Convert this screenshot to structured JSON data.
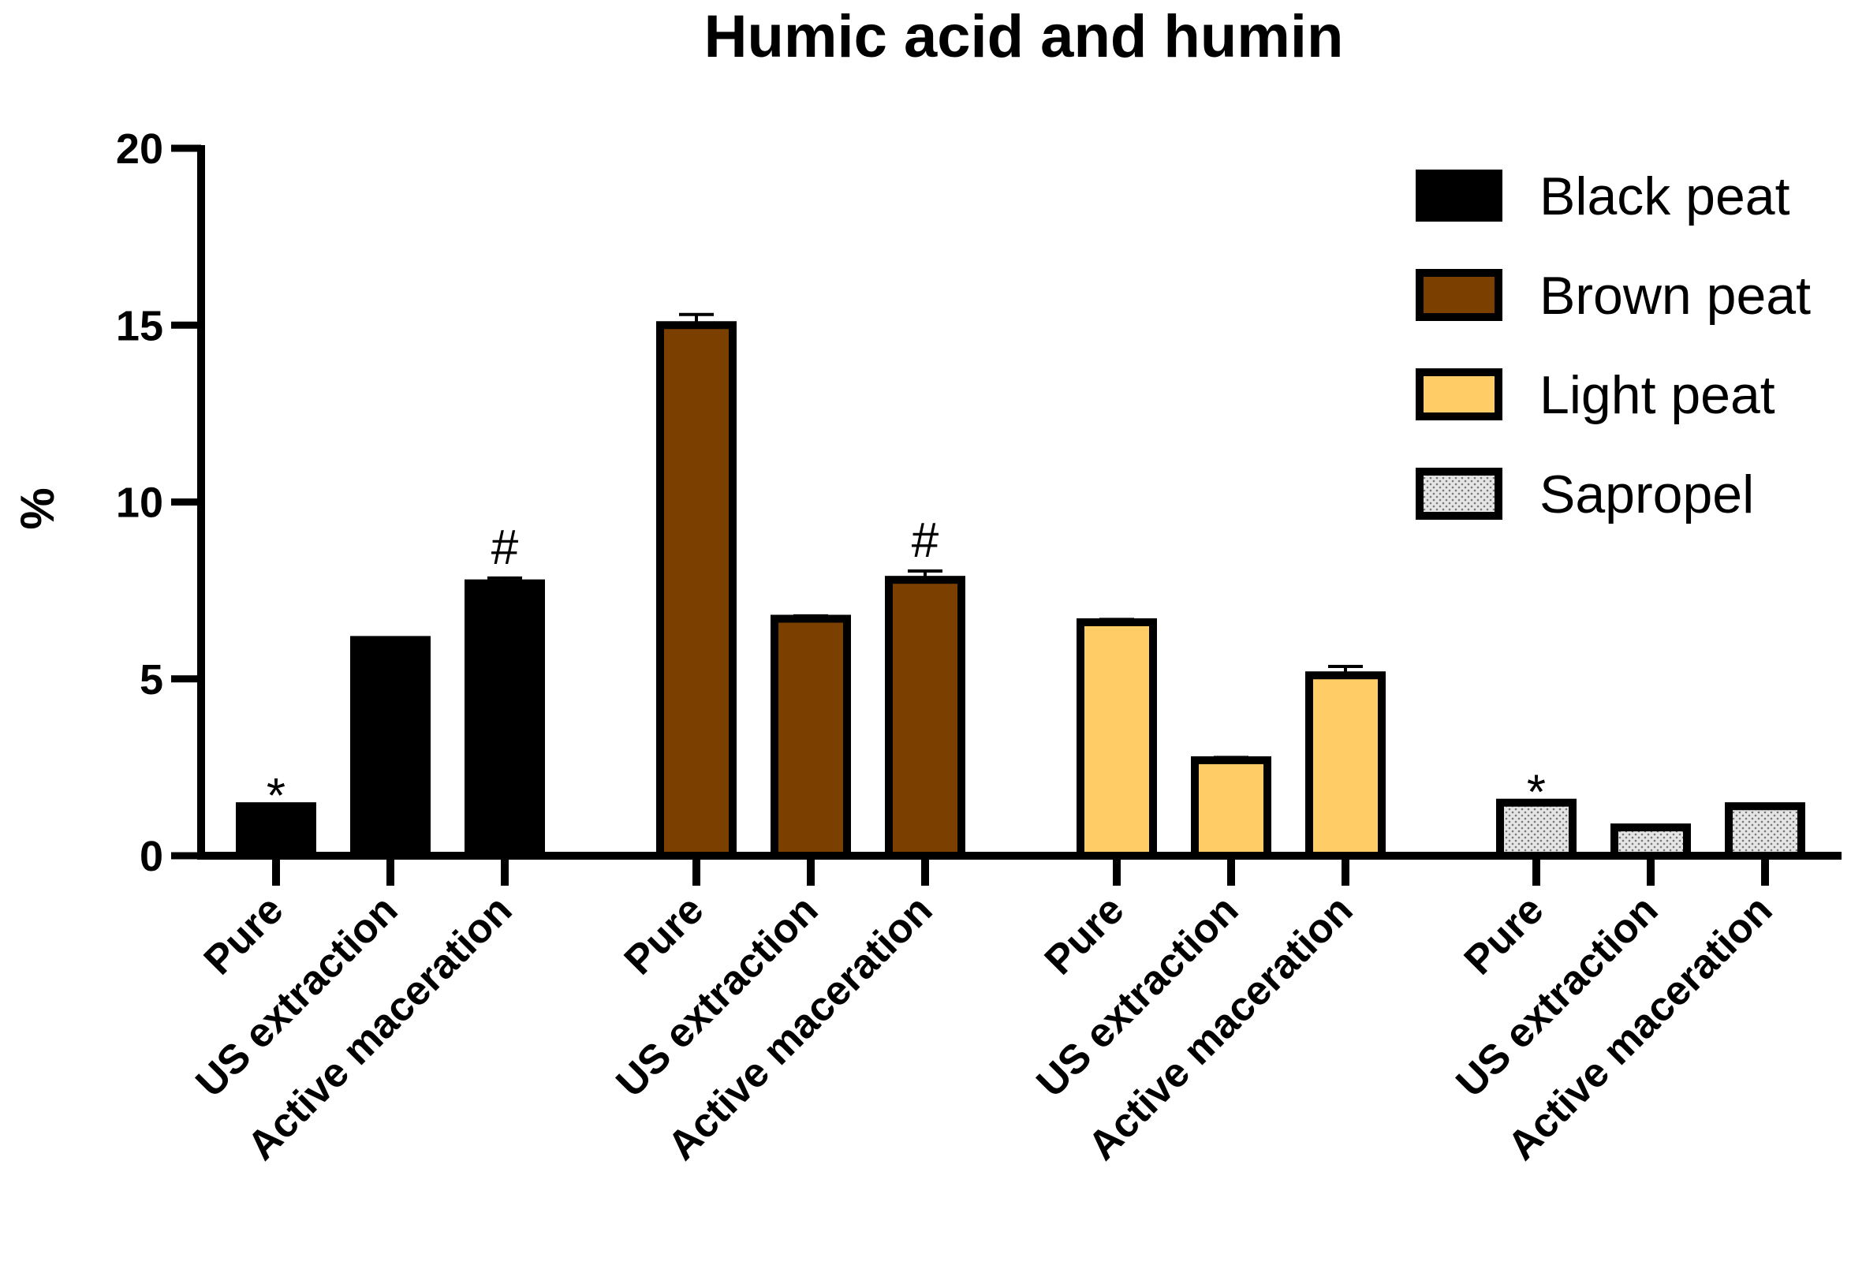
{
  "chart_data": {
    "type": "bar",
    "title": "Humic acid and humin",
    "xlabel": "",
    "ylabel": "%",
    "ylim": [
      0,
      20
    ],
    "yticks": [
      0,
      5,
      10,
      15,
      20
    ],
    "categories": [
      "Pure",
      "US extraction",
      "Active maceration"
    ],
    "legend_position": "top-right",
    "series": [
      {
        "name": "Black peat",
        "color": "#000000",
        "pattern": "solid",
        "values": [
          1.4,
          6.1,
          7.7
        ],
        "errors": [
          0.05,
          0.05,
          0.15
        ],
        "annotations": [
          "*",
          "",
          "#"
        ]
      },
      {
        "name": "Brown peat",
        "color": "#7B3F00",
        "pattern": "solid",
        "values": [
          15.0,
          6.7,
          7.8
        ],
        "errors": [
          0.3,
          0.08,
          0.25
        ],
        "annotations": [
          "",
          "",
          "#"
        ]
      },
      {
        "name": "Light peat",
        "color": "#FFCC66",
        "pattern": "solid",
        "values": [
          6.6,
          2.7,
          5.1
        ],
        "errors": [
          0.08,
          0.08,
          0.25
        ],
        "annotations": [
          "",
          "",
          ""
        ]
      },
      {
        "name": "Sapropel",
        "color": "#DDDDDD",
        "pattern": "dotted",
        "values": [
          1.5,
          0.8,
          1.4
        ],
        "errors": [
          0.05,
          0.05,
          0.05
        ],
        "annotations": [
          "*",
          "",
          ""
        ]
      }
    ]
  }
}
